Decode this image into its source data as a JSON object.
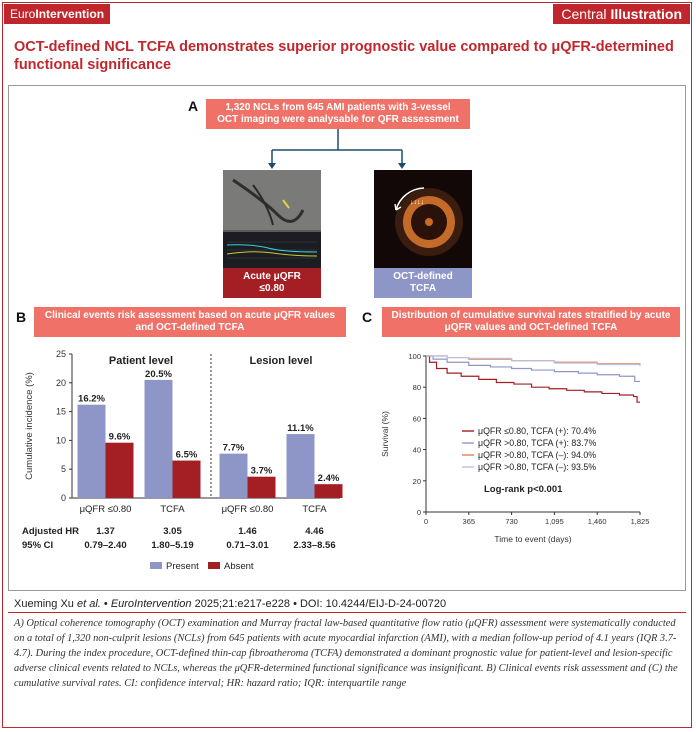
{
  "header": {
    "brand_prefix": "Euro",
    "brand_bold": "Intervention",
    "central_prefix": "Central ",
    "central_bold": "Illustration"
  },
  "title": "OCT-defined NCL TCFA demonstrates superior prognostic value compared to μQFR-determined functional significance",
  "panel_a": {
    "letter": "A",
    "box": "1,320 NCLs from 645 AMI patients with 3-vessel OCT imaging were analysable for QFR assessment",
    "left_label": "Acute μQFR\n≤0.80",
    "right_label": "OCT-defined\nTCFA",
    "left_label_color": "#a31f24",
    "right_label_color": "#8e96c8"
  },
  "panel_b": {
    "letter": "B",
    "box": "Clinical events risk assessment based on acute μQFR values and OCT-defined TCFA"
  },
  "panel_c": {
    "letter": "C",
    "box": "Distribution of cumulative survival rates stratified by acute μQFR values and OCT-defined TCFA"
  },
  "chart_data": [
    {
      "type": "bar",
      "ylabel": "Cumulative incidence (%)",
      "ylim": [
        0,
        25
      ],
      "yticks": [
        0,
        5,
        10,
        15,
        20,
        25
      ],
      "groups": [
        "Patient level",
        "Lesion level"
      ],
      "categories": [
        "μQFR ≤0.80",
        "TCFA",
        "μQFR ≤0.80",
        "TCFA"
      ],
      "series": [
        {
          "name": "Present",
          "color": "#8e96c8",
          "values": [
            16.2,
            20.5,
            7.7,
            11.1
          ],
          "labels": [
            "16.2%",
            "20.5%",
            "7.7%",
            "11.1%"
          ]
        },
        {
          "name": "Absent",
          "color": "#a31f24",
          "values": [
            9.6,
            6.5,
            3.7,
            2.4
          ],
          "labels": [
            "9.6%",
            "6.5%",
            "3.7%",
            "2.4%"
          ]
        }
      ],
      "stats": {
        "hr_label": "Adjusted HR",
        "ci_label": "95% CI",
        "hr": [
          "1.37",
          "3.05",
          "1.46",
          "4.46"
        ],
        "ci": [
          "0.79–2.40",
          "1.80–5.19",
          "0.71–3.01",
          "2.33–8.56"
        ]
      }
    },
    {
      "type": "line",
      "xlabel": "Time to event (days)",
      "ylabel": "Survival (%)",
      "xlim": [
        0,
        1825
      ],
      "ylim": [
        0,
        100
      ],
      "xticks": [
        0,
        365,
        730,
        1095,
        1460,
        1825
      ],
      "xticklabels": [
        "0",
        "365",
        "730",
        "1,095",
        "1,460",
        "1,825"
      ],
      "yticks": [
        0,
        20,
        40,
        60,
        80,
        100
      ],
      "series": [
        {
          "name": "μQFR ≤0.80, TCFA (+): 70.4%",
          "color": "#a31f24",
          "x": [
            0,
            30,
            90,
            180,
            300,
            450,
            600,
            750,
            900,
            1050,
            1200,
            1350,
            1500,
            1650,
            1770,
            1800,
            1825
          ],
          "y": [
            100,
            96,
            92,
            89,
            87,
            85,
            83,
            82,
            80,
            79,
            78,
            77,
            76,
            75,
            74,
            70.4,
            70.4
          ]
        },
        {
          "name": "μQFR >0.80, TCFA (+): 83.7%",
          "color": "#8e96c8",
          "x": [
            0,
            60,
            180,
            365,
            550,
            730,
            900,
            1095,
            1300,
            1460,
            1650,
            1780,
            1825
          ],
          "y": [
            100,
            98,
            96,
            94,
            93,
            92,
            91,
            90,
            89,
            88,
            87,
            83.7,
            83.7
          ]
        },
        {
          "name": "μQFR >0.80, TCFA (–): 94.0%",
          "color": "#e8804f",
          "x": [
            0,
            180,
            365,
            730,
            1095,
            1460,
            1825
          ],
          "y": [
            100,
            99,
            98,
            97,
            96,
            95,
            94.0
          ]
        },
        {
          "name": "μQFR >0.80, TCFA (–): 93.5%",
          "color": "#b9bfe0",
          "x": [
            0,
            180,
            365,
            730,
            1095,
            1460,
            1825
          ],
          "y": [
            100,
            99,
            98.5,
            97,
            95.5,
            94.5,
            93.5
          ]
        }
      ],
      "annotation": "Log-rank p<0.001"
    }
  ],
  "footer": {
    "authors": "Xueming Xu ",
    "etal": "et al.",
    "journal_sep": " • ",
    "journal": "EuroIntervention",
    "cite": " 2025;21:e217-e228 • DOI: 10.4244/EIJ-D-24-00720"
  },
  "caption": "A) Optical coherence tomography (OCT) examination and Murray fractal law-based quantitative flow ratio (μQFR) assessment were systematically conducted on a total of 1,320 non-culprit lesions (NCLs) from 645 patients with acute myocardial infarction (AMI), with a median follow-up period of 4.1 years (IQR 3.7-4.7). During the index procedure, OCT-defined thin-cap fibroatheroma (TCFA) demonstrated a dominant prognostic value for patient-level and lesion-specific adverse clinical events related to NCLs, whereas the μQFR-determined functional significance was insignificant. B) Clinical events risk assessment and (C) the cumulative survival rates. CI: confidence interval; HR: hazard ratio; IQR: interquartile range"
}
